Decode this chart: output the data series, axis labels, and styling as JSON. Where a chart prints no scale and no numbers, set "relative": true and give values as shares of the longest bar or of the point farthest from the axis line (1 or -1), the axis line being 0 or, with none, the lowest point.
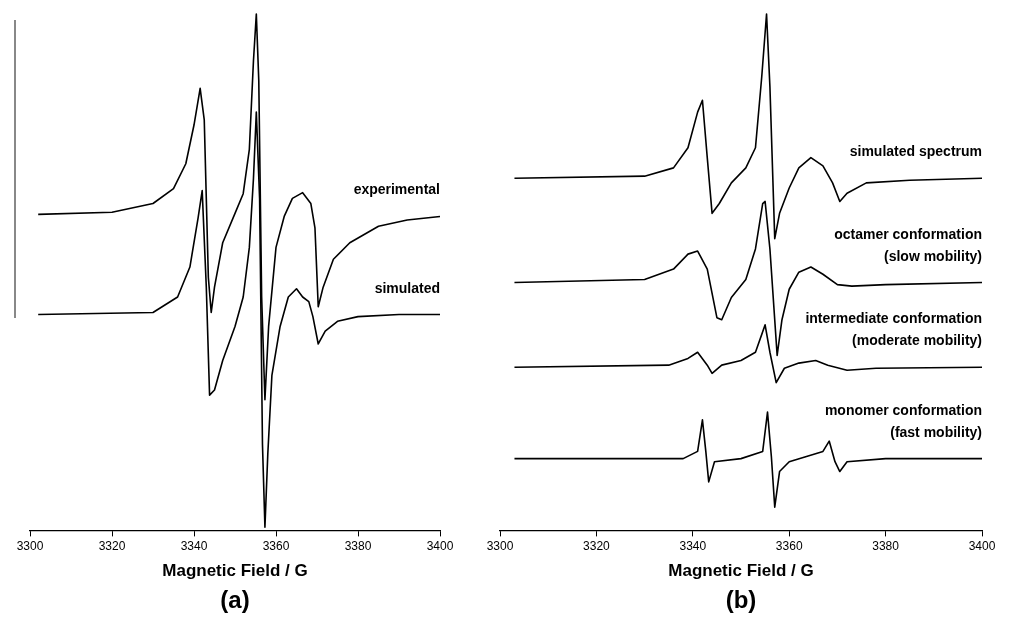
{
  "chart_data": [
    {
      "type": "line",
      "title": "(a)",
      "xlabel": "Magnetic Field / G",
      "relative": true,
      "xlim": [
        3300,
        3400
      ],
      "xticks": [
        3300,
        3320,
        3340,
        3360,
        3380,
        3400
      ],
      "grid": false,
      "legend": false,
      "marker": "none",
      "line_style": "solid",
      "series": [
        {
          "name": "experimental",
          "color": "#000000",
          "x": [
            3302,
            3320,
            3330,
            3335,
            3338,
            3340,
            3341.5,
            3342.5,
            3343.5,
            3344.2,
            3345,
            3347,
            3350,
            3352,
            3353.5,
            3354.5,
            3355.2,
            3355.8,
            3356.5,
            3357.3,
            3358.2,
            3360,
            3362,
            3364,
            3366.5,
            3368.5,
            3369.5,
            3370.3,
            3371.5,
            3374,
            3378,
            3385,
            3392,
            3400
          ],
          "values": [
            0.612,
            0.616,
            0.633,
            0.662,
            0.71,
            0.785,
            0.856,
            0.795,
            0.49,
            0.422,
            0.471,
            0.557,
            0.614,
            0.652,
            0.738,
            0.909,
            1.0,
            0.871,
            0.452,
            0.253,
            0.395,
            0.548,
            0.608,
            0.643,
            0.654,
            0.633,
            0.586,
            0.433,
            0.471,
            0.525,
            0.557,
            0.589,
            0.601,
            0.608
          ]
        },
        {
          "name": "simulated",
          "color": "#000000",
          "x": [
            3302,
            3330,
            3336,
            3339,
            3341,
            3342,
            3343,
            3343.8,
            3345,
            3347,
            3350,
            3352,
            3353.5,
            3354.5,
            3355.2,
            3356,
            3356.7,
            3357.3,
            3358,
            3359,
            3361,
            3363,
            3365,
            3366.5,
            3368,
            3369,
            3370.3,
            3372,
            3375,
            3380,
            3390,
            3400
          ],
          "values": [
            0.418,
            0.422,
            0.452,
            0.51,
            0.605,
            0.658,
            0.471,
            0.262,
            0.272,
            0.329,
            0.395,
            0.452,
            0.548,
            0.681,
            0.81,
            0.643,
            0.167,
            0.006,
            0.148,
            0.3,
            0.395,
            0.452,
            0.468,
            0.452,
            0.443,
            0.414,
            0.361,
            0.386,
            0.405,
            0.414,
            0.418,
            0.418
          ]
        }
      ]
    },
    {
      "type": "line",
      "title": "(b)",
      "xlabel": "Magnetic Field / G",
      "relative": true,
      "xlim": [
        3300,
        3400
      ],
      "xticks": [
        3300,
        3320,
        3340,
        3360,
        3380,
        3400
      ],
      "grid": false,
      "legend": false,
      "marker": "none",
      "line_style": "solid",
      "series": [
        {
          "name": "simulated spectrum",
          "color": "#000000",
          "x": [
            3303,
            3330,
            3336,
            3339,
            3341,
            3342,
            3343,
            3344,
            3345.5,
            3348,
            3351,
            3353,
            3354.3,
            3355.3,
            3356,
            3357,
            3358,
            3360,
            3362,
            3364.5,
            3367,
            3369,
            3370.5,
            3372,
            3376,
            3385,
            3400
          ],
          "values": [
            0.682,
            0.686,
            0.702,
            0.741,
            0.81,
            0.833,
            0.722,
            0.614,
            0.633,
            0.673,
            0.702,
            0.741,
            0.878,
            1.0,
            0.859,
            0.565,
            0.614,
            0.663,
            0.702,
            0.722,
            0.706,
            0.673,
            0.637,
            0.653,
            0.673,
            0.678,
            0.682
          ]
        },
        {
          "name": "octamer conformation\n(slow mobility)",
          "color": "#000000",
          "x": [
            3303,
            3330,
            3336,
            3339,
            3341,
            3343,
            3345,
            3346,
            3348,
            3351,
            3353,
            3354.5,
            3355,
            3356,
            3357.5,
            3358.5,
            3360,
            3362,
            3364.5,
            3367,
            3370,
            3373,
            3380,
            3400
          ],
          "values": [
            0.48,
            0.486,
            0.506,
            0.535,
            0.541,
            0.506,
            0.412,
            0.408,
            0.451,
            0.486,
            0.545,
            0.633,
            0.637,
            0.545,
            0.339,
            0.408,
            0.467,
            0.5,
            0.51,
            0.496,
            0.476,
            0.473,
            0.476,
            0.48
          ]
        },
        {
          "name": "intermediate conformation\n(moderate mobility)",
          "color": "#000000",
          "x": [
            3303,
            3335,
            3339,
            3341,
            3343,
            3344,
            3346,
            3350,
            3353,
            3355,
            3356,
            3357.3,
            3359,
            3362,
            3365.5,
            3368,
            3372,
            3378,
            3400
          ],
          "values": [
            0.316,
            0.32,
            0.333,
            0.345,
            0.32,
            0.304,
            0.32,
            0.329,
            0.345,
            0.398,
            0.345,
            0.286,
            0.314,
            0.324,
            0.329,
            0.32,
            0.31,
            0.314,
            0.316
          ]
        },
        {
          "name": "monomer conformation\n(fast mobility)",
          "color": "#000000",
          "x": [
            3303,
            3338,
            3341,
            3342,
            3342.7,
            3343.3,
            3344.5,
            3350,
            3354.5,
            3355.5,
            3356.3,
            3357,
            3358,
            3360,
            3367,
            3368.3,
            3369.5,
            3370.5,
            3372,
            3380,
            3400
          ],
          "values": [
            0.139,
            0.139,
            0.153,
            0.214,
            0.153,
            0.094,
            0.133,
            0.139,
            0.153,
            0.229,
            0.143,
            0.045,
            0.114,
            0.133,
            0.153,
            0.173,
            0.133,
            0.114,
            0.133,
            0.139,
            0.139
          ]
        }
      ]
    }
  ]
}
